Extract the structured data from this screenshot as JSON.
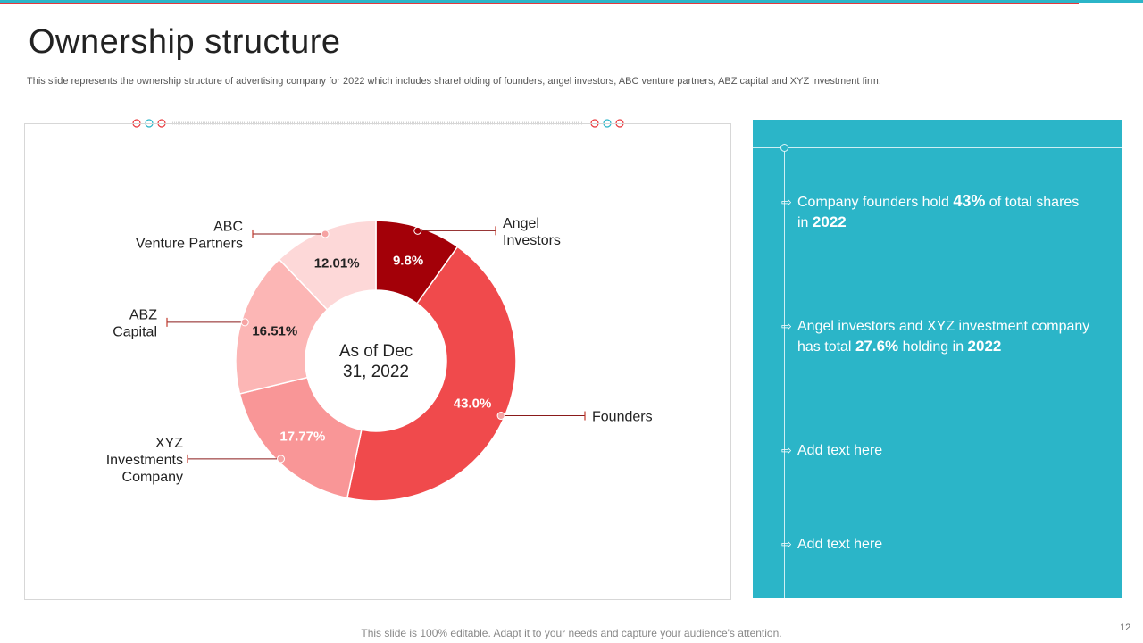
{
  "page": {
    "title": "Ownership structure",
    "subtitle": "This slide represents the ownership structure of advertising company for 2022 which includes shareholding of founders, angel investors, ABC venture partners, ABZ capital and XYZ  investment firm.",
    "footer": "This slide is 100% editable. Adapt it to your needs and capture your audience's attention.",
    "page_number": "12"
  },
  "chart_data": {
    "type": "pie",
    "variant": "donut",
    "center_label": [
      "As of Dec",
      "31, 2022"
    ],
    "slices": [
      {
        "name": "Angel Investors",
        "label_lines": [
          "Angel",
          "Investors"
        ],
        "value": 9.8,
        "display": "9.8%",
        "color": "#a30008"
      },
      {
        "name": "Founders",
        "label_lines": [
          "Founders"
        ],
        "value": 43.0,
        "display": "43.0%",
        "color": "#f04a4c"
      },
      {
        "name": "XYZ Investments Company",
        "label_lines": [
          "XYZ",
          "Investments",
          "Company"
        ],
        "value": 17.77,
        "display": "17.77%",
        "color": "#f99697"
      },
      {
        "name": "ABZ Capital",
        "label_lines": [
          "ABZ",
          "Capital"
        ],
        "value": 16.51,
        "display": "16.51%",
        "color": "#fcb6b5"
      },
      {
        "name": "ABC Venture Partners",
        "label_lines": [
          "ABC",
          "Venture Partners"
        ],
        "value": 12.01,
        "display": "12.01%",
        "color": "#fdd8d8"
      }
    ]
  },
  "panel": {
    "accent": "#2bb5c8",
    "points": [
      {
        "text_a": "Company founders hold ",
        "big": "43%",
        "text_b": " of total shares",
        "line2_a": "in ",
        "line2_big": "2022"
      },
      {
        "text_a": "Angel investors and XYZ investment company",
        "line2_a": "has total ",
        "line2_big": "27.6%",
        "line2_b": " holding in ",
        "line2_big2": "2022"
      },
      {
        "text_a": "Add text here"
      },
      {
        "text_a": "Add text here"
      }
    ]
  }
}
